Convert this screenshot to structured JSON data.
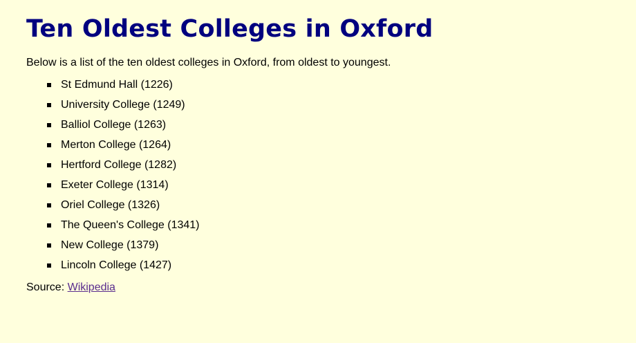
{
  "page": {
    "title": "Ten Oldest Colleges in Oxford",
    "intro": "Below is a list of the ten oldest colleges in Oxford, from oldest to youngest.",
    "colleges": [
      "St Edmund Hall (1226)",
      "University College (1249)",
      "Balliol College (1263)",
      "Merton College (1264)",
      "Hertford College (1282)",
      "Exeter College (1314)",
      "Oriel College (1326)",
      "The Queen's College (1341)",
      "New College (1379)",
      "Lincoln College (1427)"
    ],
    "source_label": "Source:",
    "source_link_text": "Wikipedia"
  },
  "colors": {
    "background": "#ffffdd",
    "heading": "#00007f",
    "text": "#000000",
    "link_visited": "#5a2d8e"
  }
}
